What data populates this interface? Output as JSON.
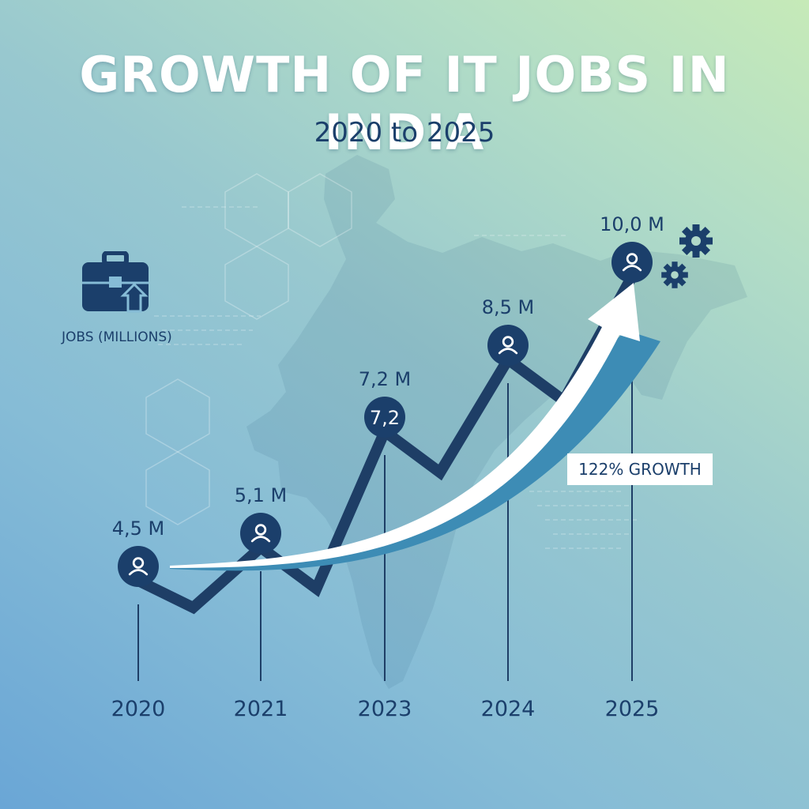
{
  "chart_data": {
    "type": "line",
    "title": "GROWTH OF IT JOBS IN INDIA",
    "subtitle": "2020 to 2025",
    "ylabel": "JOBS (MILLIONS)",
    "categories": [
      "2020",
      "2021",
      "2023",
      "2024",
      "2025"
    ],
    "values": [
      4.5,
      5.1,
      7.2,
      8.5,
      10.0
    ],
    "data_labels": [
      "4,5 M",
      "5,1 M",
      "7,2 M",
      "8,5 M",
      "10,0 M"
    ],
    "marker_labels": [
      "",
      "",
      "7,2",
      "",
      ""
    ],
    "annotation": "122% GROWTH",
    "grid": false,
    "legend": "left"
  },
  "icons": {
    "legend": "briefcase-up-arrow-icon",
    "marker": "person-icon",
    "decor": "gear-icon"
  },
  "colors": {
    "line": "#1e3e66",
    "marker": "#1b3f6b",
    "arrow": "#ffffff",
    "arrow_shadow": "#3d8cb5",
    "label": "#1b3f6b",
    "title": "#ffffff"
  }
}
